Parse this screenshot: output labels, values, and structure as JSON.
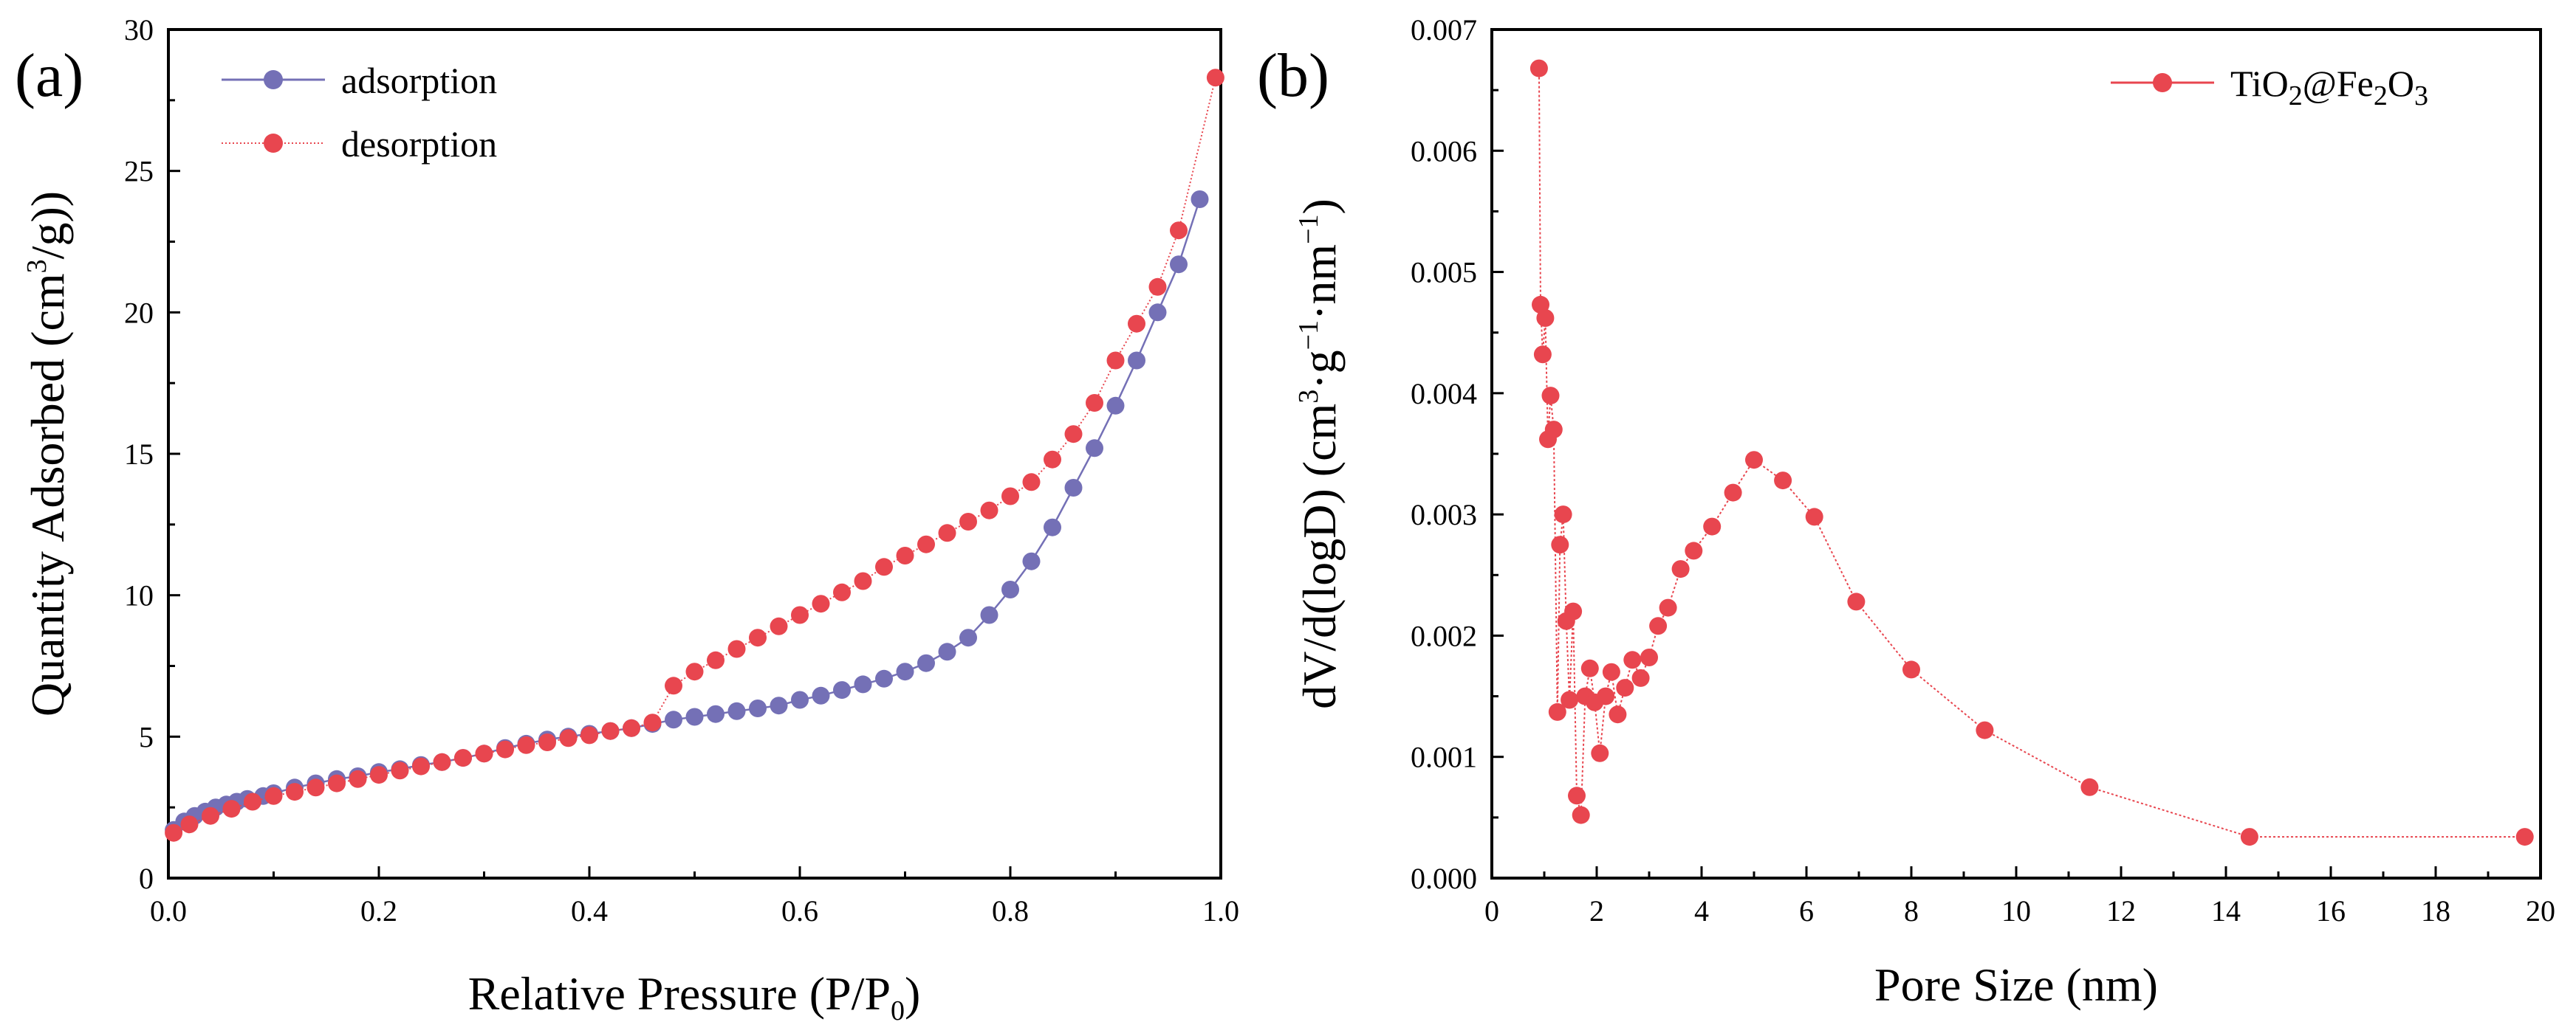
{
  "colors": {
    "adsorption": "#7470b6",
    "desorption": "#e8464f",
    "axis": "#000000"
  },
  "chart_data": [
    {
      "type": "line",
      "panel_label": "(a)",
      "title": "",
      "xlabel": "Relative Pressure (P/P0)",
      "xlabel_main": "Relative Pressure (P/P",
      "xlabel_sub": "0",
      "xlabel_end": ")",
      "ylabel": "Quantity Adsorbed (cm3/g))",
      "ylabel_main": "Quantity Adsorbed (cm",
      "ylabel_sup": "3",
      "ylabel_end": "/g))",
      "xlim": [
        0,
        1.0
      ],
      "ylim": [
        0,
        30
      ],
      "xticks": [
        "0.0",
        "0.2",
        "0.4",
        "0.6",
        "0.8",
        "1.0"
      ],
      "yticks": [
        "0",
        "5",
        "10",
        "15",
        "20",
        "25",
        "30"
      ],
      "legend_position": "top-left",
      "series": [
        {
          "name": "adsorption",
          "color": "#7470b6",
          "x": [
            0.005,
            0.015,
            0.025,
            0.035,
            0.045,
            0.055,
            0.065,
            0.075,
            0.09,
            0.1,
            0.12,
            0.14,
            0.16,
            0.18,
            0.2,
            0.22,
            0.24,
            0.26,
            0.28,
            0.3,
            0.32,
            0.34,
            0.36,
            0.38,
            0.4,
            0.42,
            0.44,
            0.46,
            0.48,
            0.5,
            0.52,
            0.54,
            0.56,
            0.58,
            0.6,
            0.62,
            0.64,
            0.66,
            0.68,
            0.7,
            0.72,
            0.74,
            0.76,
            0.78,
            0.8,
            0.82,
            0.84,
            0.86,
            0.88,
            0.9,
            0.92,
            0.94,
            0.96,
            0.98
          ],
          "y": [
            1.7,
            2.0,
            2.2,
            2.35,
            2.5,
            2.6,
            2.7,
            2.8,
            2.9,
            3.0,
            3.2,
            3.35,
            3.5,
            3.6,
            3.75,
            3.85,
            4.0,
            4.1,
            4.25,
            4.4,
            4.6,
            4.75,
            4.9,
            5.0,
            5.1,
            5.2,
            5.3,
            5.45,
            5.6,
            5.7,
            5.8,
            5.9,
            6.0,
            6.1,
            6.3,
            6.45,
            6.65,
            6.85,
            7.05,
            7.3,
            7.6,
            8.0,
            8.5,
            9.3,
            10.2,
            11.2,
            12.4,
            13.8,
            15.2,
            16.7,
            18.3,
            20.0,
            21.7,
            24.0
          ]
        },
        {
          "name": "desorption",
          "color": "#e8464f",
          "x": [
            0.995,
            0.96,
            0.94,
            0.92,
            0.9,
            0.88,
            0.86,
            0.84,
            0.82,
            0.8,
            0.78,
            0.76,
            0.74,
            0.72,
            0.7,
            0.68,
            0.66,
            0.64,
            0.62,
            0.6,
            0.58,
            0.56,
            0.54,
            0.52,
            0.5,
            0.48,
            0.46,
            0.44,
            0.42,
            0.4,
            0.38,
            0.36,
            0.34,
            0.32,
            0.3,
            0.28,
            0.26,
            0.24,
            0.22,
            0.2,
            0.18,
            0.16,
            0.14,
            0.12,
            0.1,
            0.08,
            0.06,
            0.04,
            0.02,
            0.005
          ],
          "y": [
            28.3,
            22.9,
            20.9,
            19.6,
            18.3,
            16.8,
            15.7,
            14.8,
            14.0,
            13.5,
            13.0,
            12.6,
            12.2,
            11.8,
            11.4,
            11.0,
            10.5,
            10.1,
            9.7,
            9.3,
            8.9,
            8.5,
            8.1,
            7.7,
            7.3,
            6.8,
            5.5,
            5.3,
            5.2,
            5.05,
            4.95,
            4.8,
            4.7,
            4.55,
            4.4,
            4.25,
            4.1,
            3.95,
            3.8,
            3.65,
            3.5,
            3.35,
            3.2,
            3.05,
            2.9,
            2.7,
            2.45,
            2.2,
            1.9,
            1.6
          ]
        }
      ]
    },
    {
      "type": "line",
      "panel_label": "(b)",
      "title": "",
      "xlabel": "Pore Size (nm)",
      "ylabel": "dV/d(logD) (cm3·g-1·nm-1)",
      "ylabel_main": "dV/d(logD) (cm",
      "ylabel_sup1": "3",
      "ylabel_mid": "·g",
      "ylabel_sup2": "−1",
      "ylabel_mid2": "·nm",
      "ylabel_sup3": "−1",
      "ylabel_end": ")",
      "xlim": [
        0,
        20
      ],
      "ylim": [
        0,
        0.007
      ],
      "xticks": [
        "0",
        "2",
        "4",
        "6",
        "8",
        "10",
        "12",
        "14",
        "16",
        "18",
        "20"
      ],
      "yticks": [
        "0.000",
        "0.001",
        "0.002",
        "0.003",
        "0.004",
        "0.005",
        "0.006",
        "0.007"
      ],
      "legend_position": "top-right",
      "series": [
        {
          "name": "TiO2@Fe2O3",
          "label_parts": [
            "TiO",
            "2",
            "@Fe",
            "2",
            "O",
            "3"
          ],
          "color": "#e8464f",
          "x": [
            0.9,
            0.93,
            0.97,
            1.02,
            1.07,
            1.12,
            1.18,
            1.25,
            1.3,
            1.36,
            1.42,
            1.48,
            1.55,
            1.62,
            1.7,
            1.78,
            1.87,
            1.96,
            2.06,
            2.17,
            2.28,
            2.4,
            2.54,
            2.68,
            2.84,
            3.0,
            3.17,
            3.36,
            3.6,
            3.85,
            4.2,
            4.6,
            5.0,
            5.55,
            6.15,
            6.95,
            8.0,
            9.4,
            11.4,
            14.45,
            19.7
          ],
          "y": [
            0.00668,
            0.00473,
            0.00432,
            0.00462,
            0.00362,
            0.00398,
            0.0037,
            0.00137,
            0.00275,
            0.003,
            0.00212,
            0.00147,
            0.0022,
            0.00068,
            0.00052,
            0.0015,
            0.00173,
            0.00145,
            0.00103,
            0.0015,
            0.0017,
            0.00135,
            0.00157,
            0.0018,
            0.00165,
            0.00182,
            0.00208,
            0.00223,
            0.00255,
            0.0027,
            0.0029,
            0.00318,
            0.00345,
            0.00328,
            0.00298,
            0.00228,
            0.00172,
            0.00122,
            0.00075,
            0.00034,
            0.00034
          ]
        }
      ]
    }
  ]
}
